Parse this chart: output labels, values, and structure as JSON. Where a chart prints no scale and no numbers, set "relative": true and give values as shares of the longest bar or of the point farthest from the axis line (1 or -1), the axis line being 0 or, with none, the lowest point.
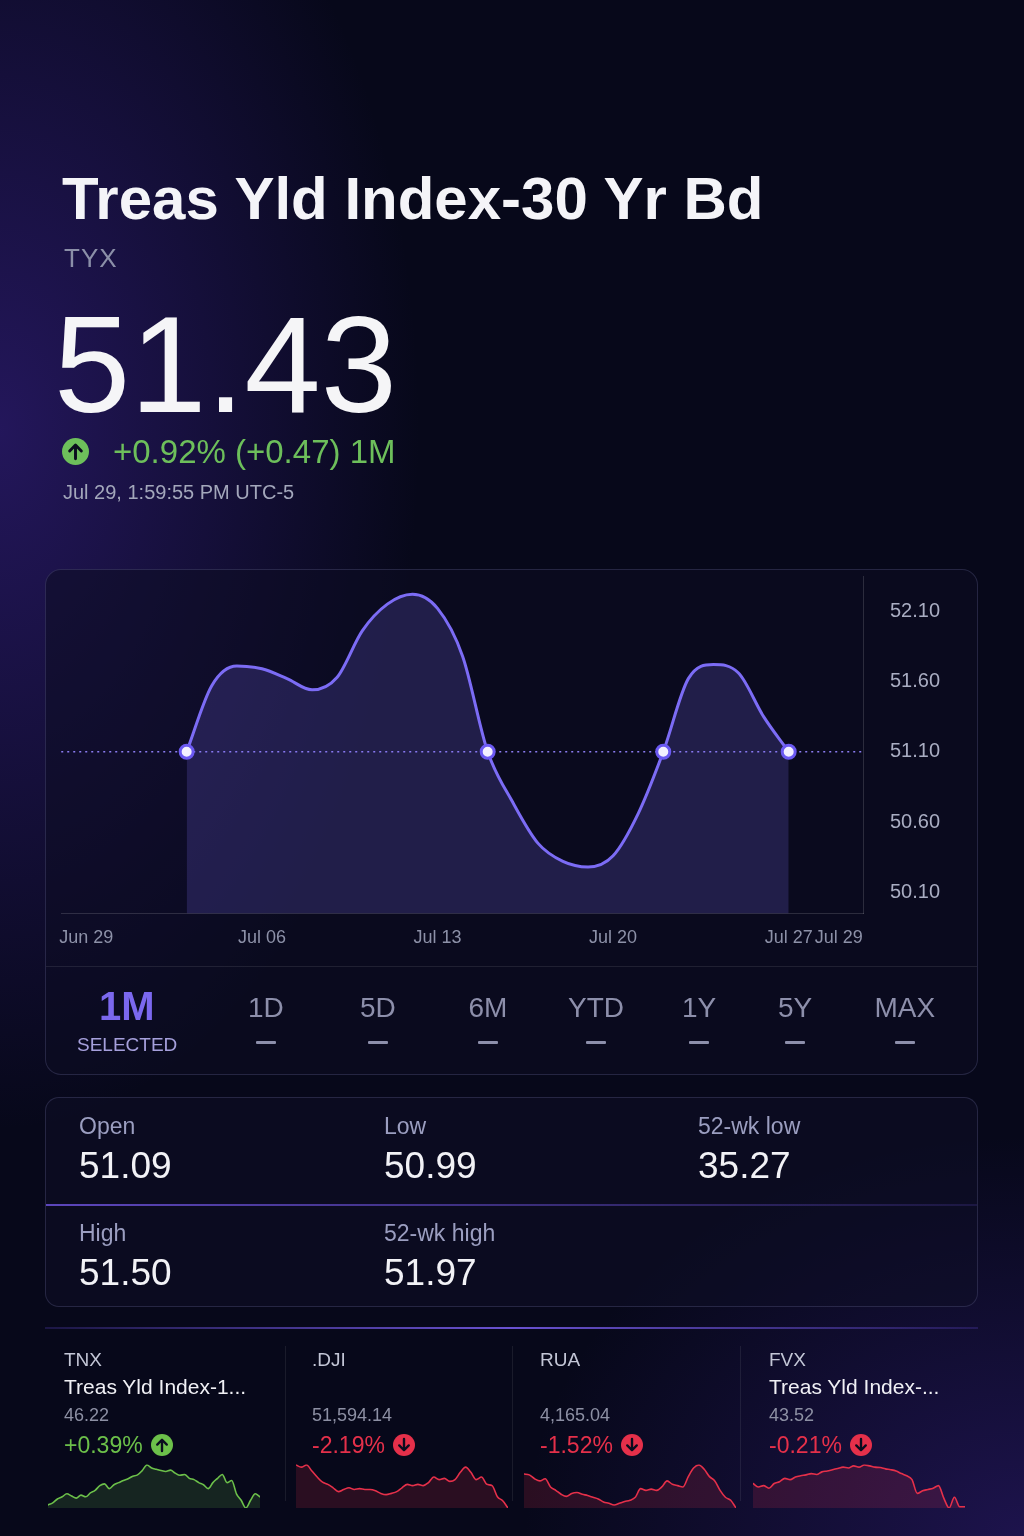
{
  "chart_data": [
    {
      "type": "area",
      "title": "Treas Yld Index-30 Yr Bd",
      "subtitle": "TYX",
      "annotations": [
        "51.43",
        "+0.92% (+0.47) 1M",
        "Jul 29, 1:59:55 PM UTC-5",
        "1M",
        "SELECTED",
        "1D",
        "5D",
        "6M",
        "YTD",
        "1Y",
        "5Y",
        "MAX"
      ],
      "series": [
        {
          "color": "#7c6cf5",
          "x": [
            "--07-03",
            "--07-04",
            "--07-05",
            "--07-06",
            "--07-07",
            "--07-08",
            "--07-09",
            "--07-10",
            "--07-11",
            "--07-12",
            "--07-13",
            "--07-14",
            "--07-15",
            "--07-16",
            "--07-17",
            "--07-18",
            "--07-19",
            "--07-20",
            "--07-21",
            "--07-22",
            "--07-23",
            "--07-24",
            "--07-25",
            "--07-26",
            "--07-27"
          ],
          "values": [
            51.1,
            51.57,
            51.71,
            51.69,
            51.62,
            51.54,
            51.63,
            51.96,
            52.15,
            52.22,
            52.12,
            51.78,
            51.1,
            50.74,
            50.45,
            50.32,
            50.28,
            50.36,
            50.66,
            51.1,
            51.62,
            51.72,
            51.66,
            51.35,
            51.1
          ]
        },
        {
          "type": "scatter",
          "color": "#f3f0ff",
          "marker": "circle",
          "x": [
            "--07-03",
            "--07-15",
            "--07-22",
            "--07-27"
          ],
          "values": [
            51.1,
            51.1,
            51.1,
            51.1
          ]
        }
      ],
      "xlim": [
        "--06-28",
        "--07-30"
      ],
      "xticks": [
        {
          "value": "--06-29",
          "label": "Jun 29"
        },
        {
          "value": "--07-06",
          "label": "Jul 06"
        },
        {
          "value": "--07-13",
          "label": "Jul 13"
        },
        {
          "value": "--07-20",
          "label": "Jul 20"
        },
        {
          "value": "--07-27",
          "label": "Jul 27"
        },
        {
          "value": "--07-29",
          "label": "Jul 29"
        }
      ],
      "ylim": [
        49.95,
        52.35
      ],
      "yticks": [
        {
          "value": 50.1,
          "label": "50.10"
        },
        {
          "value": 50.6,
          "label": "50.60"
        },
        {
          "value": 51.1,
          "label": "51.10"
        },
        {
          "value": 51.6,
          "label": "51.60"
        },
        {
          "value": 52.1,
          "label": "52.10"
        }
      ],
      "ref_lines": [
        {
          "axis": "y",
          "value": 51.1,
          "color": "#8a7cf0",
          "line_style": "dotted"
        }
      ],
      "grid": false
    },
    {
      "type": "other",
      "annotations": [
        "Open",
        "51.09",
        "Low",
        "50.99",
        "52-wk low",
        "35.27",
        "High",
        "51.50",
        "52-wk high",
        "51.97"
      ]
    },
    {
      "type": "area",
      "relative": true,
      "tick_labels": false,
      "title": "TNX",
      "subtitle": "Treas Yld Index-1...",
      "annotations": [
        "46.22",
        "+0.39%"
      ],
      "color": "#6cc04a",
      "categories": [
        null,
        null,
        null,
        null,
        null,
        null,
        null,
        null,
        null,
        null,
        null,
        null,
        null,
        null,
        null,
        null,
        null,
        null,
        null,
        null,
        null,
        null,
        null,
        null,
        null,
        null,
        null,
        null,
        null,
        null,
        null,
        null,
        null,
        null,
        null,
        null,
        null,
        null,
        null,
        null,
        null,
        null,
        null,
        null,
        null,
        null
      ],
      "values": [
        0.07,
        0.12,
        0.21,
        0.26,
        0.33,
        0.28,
        0.23,
        0.3,
        0.26,
        0.35,
        0.41,
        0.52,
        0.56,
        0.45,
        0.54,
        0.59,
        0.64,
        0.68,
        0.74,
        0.77,
        0.87,
        1.0,
        0.93,
        0.9,
        0.87,
        0.85,
        0.88,
        0.81,
        0.76,
        0.78,
        0.69,
        0.66,
        0.59,
        0.54,
        0.45,
        0.59,
        0.69,
        0.78,
        0.59,
        0.64,
        0.33,
        0.18,
        0.0,
        0.18,
        0.33,
        0.26
      ]
    },
    {
      "type": "area",
      "relative": true,
      "tick_labels": false,
      "title": ".DJI",
      "annotations": [
        "51,594.14",
        "-2.19%"
      ],
      "color": "#e5304a",
      "categories": [
        null,
        null,
        null,
        null,
        null,
        null,
        null,
        null,
        null,
        null,
        null,
        null,
        null,
        null,
        null,
        null,
        null,
        null,
        null,
        null,
        null,
        null,
        null,
        null,
        null,
        null,
        null,
        null,
        null,
        null,
        null,
        null,
        null,
        null,
        null,
        null,
        null,
        null,
        null,
        null,
        null
      ],
      "values": [
        1.0,
        0.95,
        1.0,
        0.86,
        0.72,
        0.6,
        0.55,
        0.47,
        0.38,
        0.43,
        0.47,
        0.43,
        0.45,
        0.43,
        0.43,
        0.4,
        0.34,
        0.31,
        0.34,
        0.38,
        0.47,
        0.55,
        0.52,
        0.55,
        0.52,
        0.59,
        0.72,
        0.66,
        0.69,
        0.62,
        0.66,
        0.83,
        0.95,
        0.83,
        0.66,
        0.72,
        0.55,
        0.52,
        0.26,
        0.17,
        0.0
      ]
    },
    {
      "type": "area",
      "relative": true,
      "tick_labels": false,
      "title": "RUA",
      "annotations": [
        "4,165.04",
        "-1.52%"
      ],
      "color": "#e5304a",
      "categories": [
        null,
        null,
        null,
        null,
        null,
        null,
        null,
        null,
        null,
        null,
        null,
        null,
        null,
        null,
        null,
        null,
        null,
        null,
        null,
        null,
        null,
        null,
        null,
        null,
        null,
        null,
        null,
        null,
        null,
        null,
        null,
        null,
        null,
        null,
        null,
        null,
        null,
        null,
        null,
        null,
        null
      ],
      "values": [
        0.79,
        0.77,
        0.68,
        0.63,
        0.68,
        0.49,
        0.41,
        0.32,
        0.27,
        0.34,
        0.36,
        0.32,
        0.29,
        0.25,
        0.21,
        0.14,
        0.11,
        0.07,
        0.11,
        0.15,
        0.18,
        0.25,
        0.45,
        0.41,
        0.44,
        0.41,
        0.49,
        0.63,
        0.55,
        0.52,
        0.49,
        0.73,
        0.93,
        1.0,
        0.9,
        0.73,
        0.63,
        0.41,
        0.25,
        0.18,
        0.0
      ]
    },
    {
      "type": "area",
      "relative": true,
      "tick_labels": false,
      "title": "FVX",
      "subtitle": "Treas Yld Index-...",
      "annotations": [
        "43.52",
        "-0.21%"
      ],
      "color": "#e5304a",
      "categories": [
        null,
        null,
        null,
        null,
        null,
        null,
        null,
        null,
        null,
        null,
        null,
        null,
        null,
        null,
        null,
        null,
        null,
        null,
        null,
        null,
        null,
        null,
        null,
        null,
        null,
        null,
        null,
        null,
        null,
        null,
        null,
        null,
        null,
        null,
        null,
        null,
        null,
        null,
        null,
        null,
        null
      ],
      "values": [
        0.57,
        0.49,
        0.52,
        0.46,
        0.57,
        0.61,
        0.69,
        0.66,
        0.72,
        0.75,
        0.77,
        0.8,
        0.78,
        0.84,
        0.86,
        0.89,
        0.92,
        0.95,
        0.93,
        0.98,
        0.95,
        1.0,
        0.98,
        0.95,
        0.94,
        0.91,
        0.89,
        0.86,
        0.8,
        0.75,
        0.66,
        0.34,
        0.4,
        0.43,
        0.46,
        0.52,
        0.23,
        0.0,
        0.25,
        0.03,
        0.03
      ]
    }
  ]
}
